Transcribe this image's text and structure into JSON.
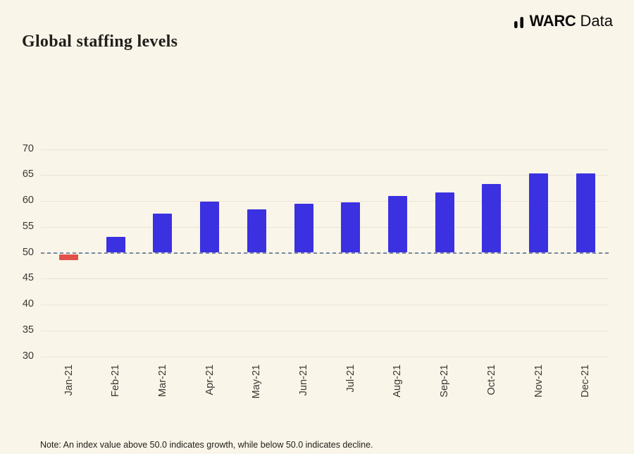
{
  "logo": {
    "brand_bold": "WARC",
    "brand_regular": "Data",
    "icon": "bar-chart-icon"
  },
  "title": "Global staffing levels",
  "note": "Note: An index value above 50.0 indicates growth, while below 50.0 indicates decline.",
  "colors": {
    "background": "#faf5e9",
    "grid": "#ebe4d4",
    "axis_text": "#3a3733",
    "bar_positive": "#3b31e0",
    "bar_negative": "#e2504a",
    "baseline_dash": "#7589a2",
    "logo_text": "#0d0d0d"
  },
  "chart_data": {
    "type": "bar",
    "title": "Global staffing levels",
    "categories": [
      "Jan-21",
      "Feb-21",
      "Mar-21",
      "Apr-21",
      "May-21",
      "Jun-21",
      "Jul-21",
      "Aug-21",
      "Sep-21",
      "Oct-21",
      "Nov-21",
      "Dec-21"
    ],
    "values": [
      48.6,
      53.0,
      57.6,
      59.9,
      58.4,
      59.5,
      59.7,
      60.9,
      61.7,
      63.3,
      65.3,
      65.3
    ],
    "baseline": 50,
    "ylim": [
      30,
      70
    ],
    "yticks": [
      70,
      65,
      60,
      55,
      50,
      45,
      40,
      35,
      30
    ],
    "xlabel": "",
    "ylabel": "",
    "grid": true,
    "legend": "none",
    "bar_color": "#3b31e0",
    "below_baseline_color": "#e2504a",
    "baseline_color": "#7589a2",
    "note": "Bars below the 50.0 baseline are highlighted in red"
  }
}
